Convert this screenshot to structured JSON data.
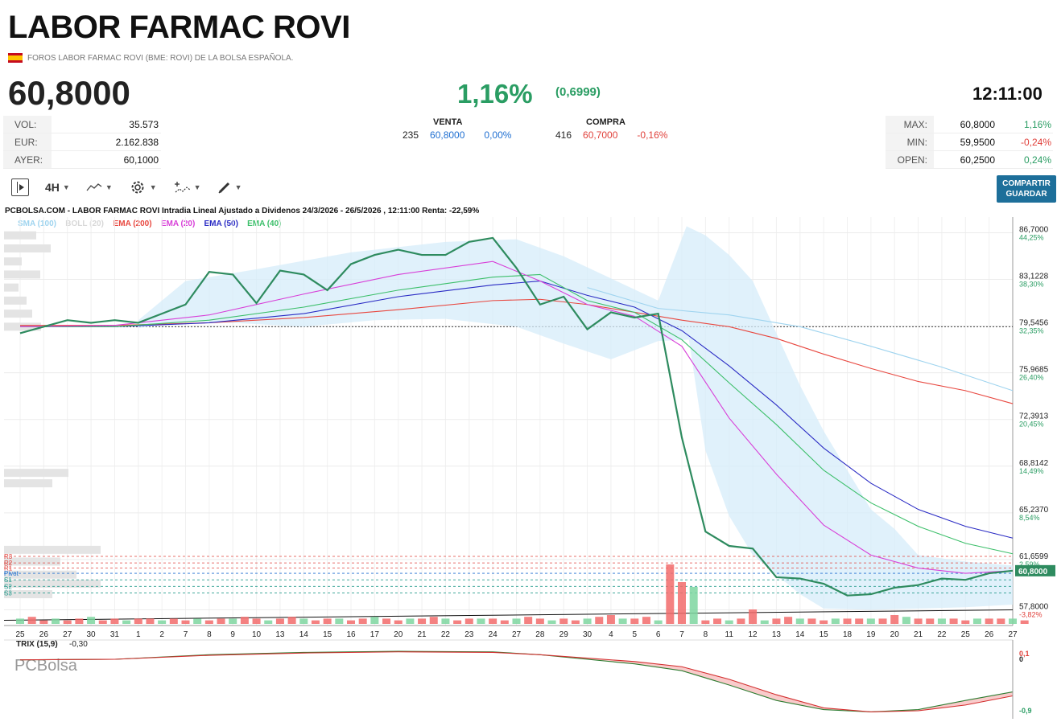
{
  "header": {
    "title": "LABOR FARMAC ROVI",
    "subtitle": "FOROS LABOR FARMAC ROVI (BME: ROVI) DE LA BOLSA ESPAÑOLA.",
    "price": "60,8000",
    "change_pct": "1,16%",
    "change_abs": "(0,6999)",
    "time": "12:11:00"
  },
  "stats_left": [
    {
      "label": "VOL:",
      "value": "35.573"
    },
    {
      "label": "EUR:",
      "value": "2.162.838"
    },
    {
      "label": "AYER:",
      "value": "60,1000"
    }
  ],
  "venta": {
    "label": "VENTA",
    "qty": "235",
    "price": "60,8000",
    "pct": "0,00%"
  },
  "compra": {
    "label": "COMPRA",
    "qty": "416",
    "price": "60,7000",
    "pct": "-0,16%"
  },
  "stats_right": [
    {
      "label": "MAX:",
      "value": "60,8000",
      "pct": "1,16%",
      "color": "#2a9d63"
    },
    {
      "label": "MIN:",
      "value": "59,9500",
      "pct": "-0,24%",
      "color": "#e0413b"
    },
    {
      "label": "OPEN:",
      "value": "60,2500",
      "pct": "0,24%",
      "color": "#2a9d63"
    }
  ],
  "toolbar": {
    "interval": "4H",
    "compartir_line1": "COMPARTIR",
    "compartir_line2": "GUARDAR"
  },
  "chart_data": {
    "type": "line",
    "title": "PCBOLSA.COM - LABOR FARMAC ROVI Intradia Lineal Ajustado a Dividenos 24/3/2026 - 26/5/2026 , 12:11:00 Renta: -22,59%",
    "watermark": "PCBolsa",
    "legend": [
      {
        "name": "SMA (100)",
        "color": "#9fd4ef"
      },
      {
        "name": "BOLL (20)",
        "color": "#d8d8d8"
      },
      {
        "name": "EMA (200)",
        "color": "#e8473f"
      },
      {
        "name": "EMA (20)",
        "color": "#d83fd8"
      },
      {
        "name": "EMA (50)",
        "color": "#2a2bc4"
      },
      {
        "name": "EMA (40)",
        "color": "#3cbf6a"
      }
    ],
    "x_labels": [
      "25",
      "26",
      "27",
      "30",
      "31",
      "1",
      "2",
      "7",
      "8",
      "9",
      "10",
      "13",
      "14",
      "15",
      "16",
      "17",
      "20",
      "21",
      "22",
      "23",
      "24",
      "27",
      "28",
      "29",
      "30",
      "4",
      "5",
      "6",
      "7",
      "8",
      "11",
      "12",
      "13",
      "14",
      "15",
      "18",
      "19",
      "20",
      "21",
      "22",
      "25",
      "26",
      "27"
    ],
    "y_ticks": [
      {
        "value": "86,7000",
        "pct": "44,25%"
      },
      {
        "value": "83,1228",
        "pct": "38,30%"
      },
      {
        "value": "79,5456",
        "pct": "32,35%"
      },
      {
        "value": "75,9685",
        "pct": "26,40%"
      },
      {
        "value": "72,3913",
        "pct": "20,45%"
      },
      {
        "value": "68,8142",
        "pct": "14,49%"
      },
      {
        "value": "65,2370",
        "pct": "8,54%"
      },
      {
        "value": "61,6599",
        "pct": "2,59%"
      },
      {
        "value": "57,8000",
        "pct": "-3,82%"
      }
    ],
    "ylim": [
      56.6,
      87.9
    ],
    "reference_price": 79.5,
    "last_value": "60,8000",
    "pivots": [
      "R3",
      "R2",
      "R1",
      "Pivot",
      "S1",
      "S2",
      "S3"
    ],
    "series": [
      {
        "name": "ROVI",
        "color": "#2e8b5f",
        "points": [
          [
            0,
            79.0
          ],
          [
            1,
            79.5
          ],
          [
            2,
            80.0
          ],
          [
            3,
            79.8
          ],
          [
            4,
            80.0
          ],
          [
            5,
            79.8
          ],
          [
            6,
            80.5
          ],
          [
            7,
            81.2
          ],
          [
            8,
            83.7
          ],
          [
            9,
            83.5
          ],
          [
            10,
            81.3
          ],
          [
            11,
            83.8
          ],
          [
            12,
            83.5
          ],
          [
            13,
            82.3
          ],
          [
            14,
            84.3
          ],
          [
            15,
            85.0
          ],
          [
            16,
            85.4
          ],
          [
            17,
            85.0
          ],
          [
            18,
            85.0
          ],
          [
            19,
            86.0
          ],
          [
            20,
            86.3
          ],
          [
            21,
            84.0
          ],
          [
            22,
            81.2
          ],
          [
            23,
            81.8
          ],
          [
            24,
            79.3
          ],
          [
            25,
            80.6
          ],
          [
            26,
            80.2
          ],
          [
            27,
            80.5
          ],
          [
            28,
            71.0
          ],
          [
            29,
            63.8
          ],
          [
            30,
            62.7
          ],
          [
            31,
            62.5
          ],
          [
            32,
            60.3
          ],
          [
            33,
            60.2
          ],
          [
            34,
            59.8
          ],
          [
            35,
            58.9
          ],
          [
            36,
            59.0
          ],
          [
            37,
            59.5
          ],
          [
            38,
            59.7
          ],
          [
            39,
            60.2
          ],
          [
            40,
            60.1
          ],
          [
            41,
            60.6
          ],
          [
            42,
            60.8
          ]
        ]
      },
      {
        "name": "EMA (20)",
        "color": "#d83fd8",
        "points": [
          [
            0,
            79.5
          ],
          [
            4,
            79.6
          ],
          [
            8,
            80.4
          ],
          [
            12,
            82.0
          ],
          [
            16,
            83.5
          ],
          [
            20,
            84.5
          ],
          [
            22,
            83.0
          ],
          [
            24,
            81.2
          ],
          [
            26,
            80.3
          ],
          [
            28,
            78.0
          ],
          [
            30,
            72.5
          ],
          [
            32,
            68.2
          ],
          [
            34,
            64.3
          ],
          [
            36,
            62.0
          ],
          [
            38,
            61.0
          ],
          [
            40,
            60.6
          ],
          [
            42,
            60.8
          ]
        ]
      },
      {
        "name": "EMA (40)",
        "color": "#3cbf6a",
        "points": [
          [
            0,
            79.5
          ],
          [
            4,
            79.5
          ],
          [
            8,
            80.0
          ],
          [
            12,
            81.0
          ],
          [
            16,
            82.3
          ],
          [
            20,
            83.3
          ],
          [
            22,
            83.5
          ],
          [
            24,
            81.5
          ],
          [
            26,
            80.6
          ],
          [
            28,
            78.5
          ],
          [
            30,
            75.2
          ],
          [
            32,
            72.0
          ],
          [
            34,
            68.5
          ],
          [
            36,
            66.0
          ],
          [
            38,
            64.2
          ],
          [
            40,
            62.9
          ],
          [
            42,
            62.1
          ]
        ]
      },
      {
        "name": "EMA (50)",
        "color": "#2a2bc4",
        "points": [
          [
            0,
            79.5
          ],
          [
            4,
            79.5
          ],
          [
            8,
            79.8
          ],
          [
            12,
            80.5
          ],
          [
            16,
            81.8
          ],
          [
            20,
            82.7
          ],
          [
            22,
            83.0
          ],
          [
            24,
            81.9
          ],
          [
            26,
            81.0
          ],
          [
            28,
            79.2
          ],
          [
            30,
            76.5
          ],
          [
            32,
            73.5
          ],
          [
            34,
            70.2
          ],
          [
            36,
            67.5
          ],
          [
            38,
            65.5
          ],
          [
            40,
            64.2
          ],
          [
            42,
            63.3
          ]
        ]
      },
      {
        "name": "EMA (200)",
        "color": "#e8473f",
        "points": [
          [
            0,
            79.6
          ],
          [
            4,
            79.6
          ],
          [
            8,
            79.8
          ],
          [
            12,
            80.2
          ],
          [
            16,
            80.8
          ],
          [
            20,
            81.5
          ],
          [
            22,
            81.6
          ],
          [
            24,
            81.2
          ],
          [
            26,
            80.6
          ],
          [
            28,
            80.0
          ],
          [
            30,
            79.5
          ],
          [
            32,
            78.6
          ],
          [
            34,
            77.4
          ],
          [
            36,
            76.3
          ],
          [
            38,
            75.3
          ],
          [
            40,
            74.6
          ],
          [
            42,
            73.6
          ]
        ]
      },
      {
        "name": "SMA (100)",
        "color": "#9fd4ef",
        "points": [
          [
            24,
            82.5
          ],
          [
            27,
            80.9
          ],
          [
            30,
            80.4
          ],
          [
            33,
            79.5
          ],
          [
            36,
            78.0
          ],
          [
            39,
            76.4
          ],
          [
            42,
            74.6
          ]
        ]
      }
    ],
    "indicator": {
      "name": "TRIX (15,9)",
      "value": "-0,30",
      "ticks": [
        "0,1",
        "0",
        "-0,9"
      ]
    }
  }
}
